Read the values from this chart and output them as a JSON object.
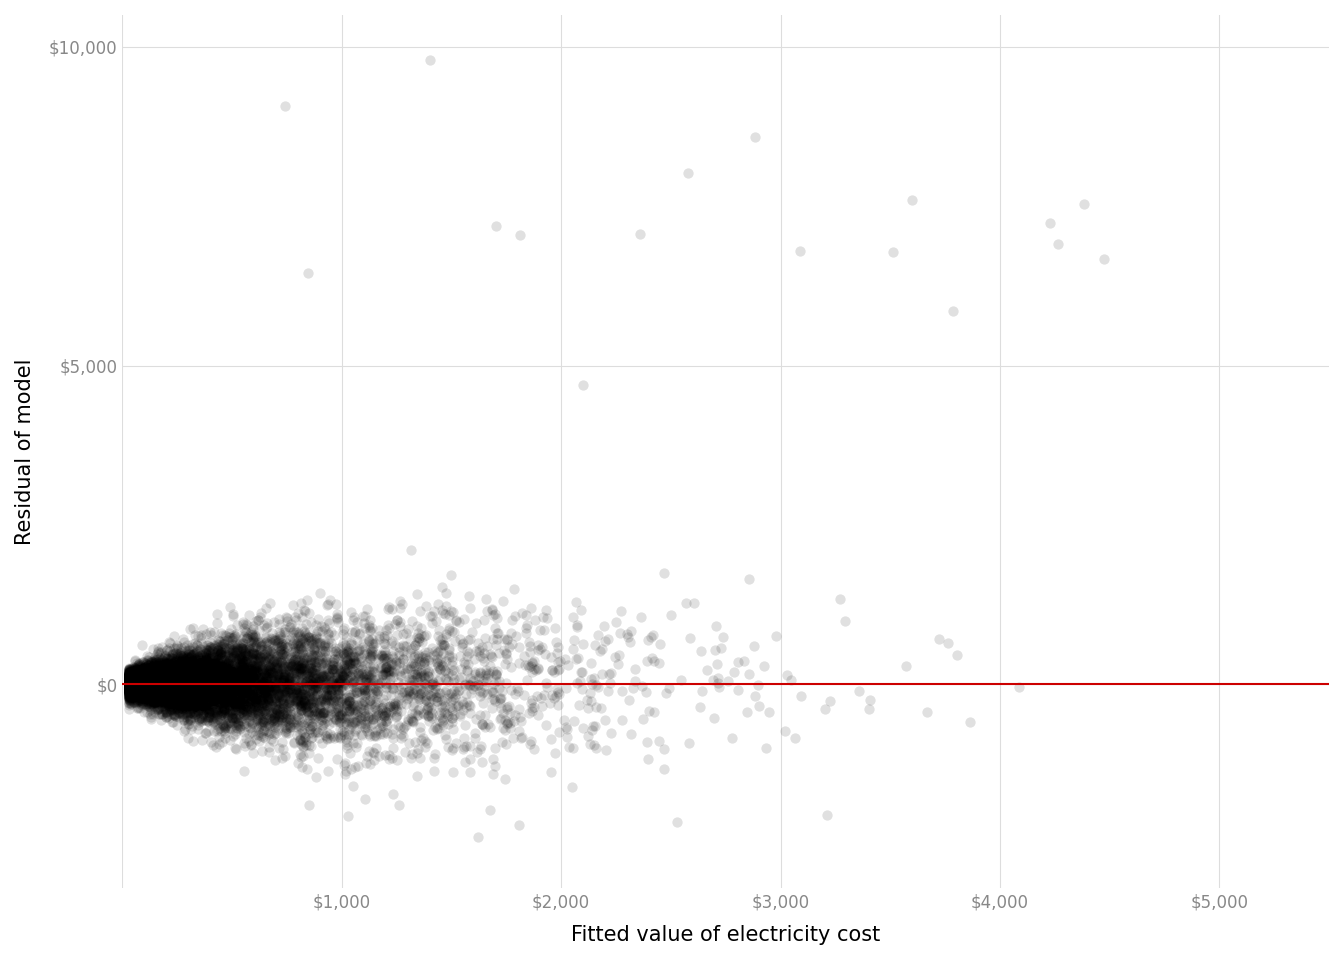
{
  "title": "",
  "xlabel": "Fitted value of electricity cost",
  "ylabel": "Residual of model",
  "xlim": [
    0,
    5500
  ],
  "ylim": [
    -3200,
    10500
  ],
  "xticks": [
    0,
    1000,
    2000,
    3000,
    4000,
    5000
  ],
  "yticks": [
    0,
    5000,
    10000
  ],
  "ytick_labels": [
    "$0",
    "$5,000",
    "$10,000"
  ],
  "xtick_labels": [
    "",
    "$1,000",
    "$2,000",
    "$3,000",
    "$4,000",
    "$5,000"
  ],
  "hline_y": 0,
  "hline_color": "#cc0000",
  "point_color": "#000000",
  "point_alpha": 0.12,
  "point_size": 55,
  "background_color": "#ffffff",
  "grid_color": "#dddddd",
  "n_points": 10000,
  "seed": 42,
  "xlabel_fontsize": 15,
  "ylabel_fontsize": 15,
  "tick_fontsize": 12,
  "tick_color": "#888888"
}
